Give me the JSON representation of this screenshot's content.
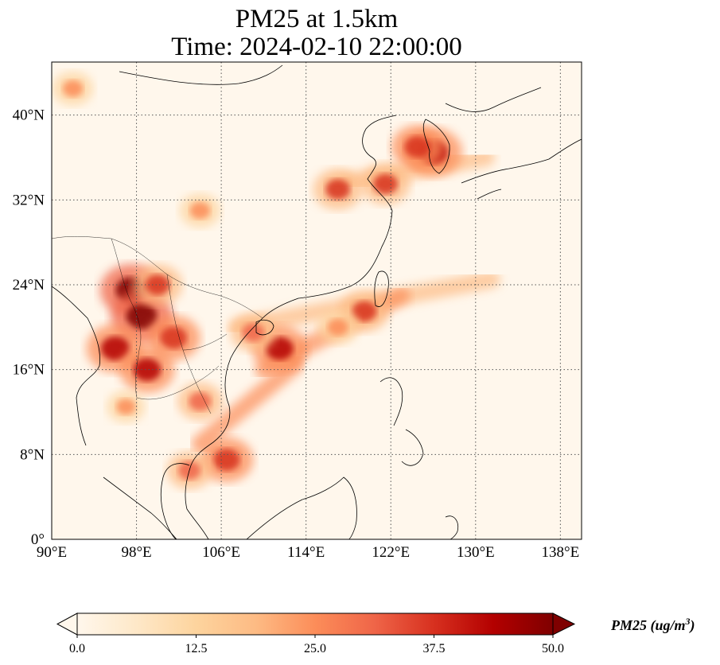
{
  "title": {
    "line1": "PM25 at 1.5km",
    "line2": "Time: 2024-02-10 22:00:00"
  },
  "map": {
    "lon_range": [
      90,
      140
    ],
    "lat_range": [
      0,
      45
    ],
    "gridlines": true,
    "x_ticks": [
      "90°E",
      "98°E",
      "106°E",
      "114°E",
      "122°E",
      "130°E",
      "138°E"
    ],
    "y_ticks": [
      "0°",
      "8°N",
      "16°N",
      "24°N",
      "32°N",
      "40°N"
    ],
    "x_tick_values": [
      90,
      98,
      106,
      114,
      122,
      130,
      138
    ],
    "y_tick_values": [
      0,
      8,
      16,
      24,
      32,
      40
    ],
    "colormap": "OrRd",
    "hotspots": [
      {
        "lon": 97.5,
        "lat": 23.5,
        "level": 50
      },
      {
        "lon": 98.5,
        "lat": 21.0,
        "level": 50
      },
      {
        "lon": 96.0,
        "lat": 18.0,
        "level": 45
      },
      {
        "lon": 101.5,
        "lat": 19.0,
        "level": 40
      },
      {
        "lon": 99.0,
        "lat": 16.0,
        "level": 42
      },
      {
        "lon": 104.0,
        "lat": 13.0,
        "level": 30
      },
      {
        "lon": 106.5,
        "lat": 7.5,
        "level": 40
      },
      {
        "lon": 103.0,
        "lat": 6.5,
        "level": 30
      },
      {
        "lon": 111.5,
        "lat": 18.0,
        "level": 42
      },
      {
        "lon": 109.0,
        "lat": 19.5,
        "level": 30
      },
      {
        "lon": 126.0,
        "lat": 36.5,
        "level": 45
      },
      {
        "lon": 124.5,
        "lat": 37.0,
        "level": 38
      },
      {
        "lon": 117.0,
        "lat": 33.0,
        "level": 35
      },
      {
        "lon": 121.5,
        "lat": 33.5,
        "level": 35
      },
      {
        "lon": 119.5,
        "lat": 21.5,
        "level": 35
      },
      {
        "lon": 117.0,
        "lat": 20.0,
        "level": 25
      },
      {
        "lon": 104.0,
        "lat": 31.0,
        "level": 25
      },
      {
        "lon": 92.0,
        "lat": 42.5,
        "level": 25
      },
      {
        "lon": 100.0,
        "lat": 24.0,
        "level": 35
      },
      {
        "lon": 97.0,
        "lat": 12.5,
        "level": 22
      }
    ],
    "plumes": [
      {
        "from": [
          107.5,
          20.0
        ],
        "to": [
          131.5,
          24.5
        ],
        "level": 20
      },
      {
        "from": [
          110.0,
          16.0
        ],
        "to": [
          123.0,
          23.0
        ],
        "level": 22
      },
      {
        "from": [
          104.0,
          9.0
        ],
        "to": [
          113.0,
          16.5
        ],
        "level": 22
      },
      {
        "from": [
          117.0,
          33.5
        ],
        "to": [
          131.0,
          36.0
        ],
        "level": 20
      }
    ]
  },
  "colorbar": {
    "min": 0,
    "max": 50,
    "ticks": [
      "0.0",
      "12.5",
      "25.0",
      "37.5",
      "50.0"
    ],
    "tick_values": [
      0,
      12.5,
      25,
      37.5,
      50
    ],
    "label": "PM25 (ug/m",
    "label_superscript": "3",
    "label_close": ")",
    "extend": "both",
    "colors": [
      "#fff7ec",
      "#fee8c8",
      "#fdd49e",
      "#fdbb84",
      "#fc8d59",
      "#ef6548",
      "#d7301f",
      "#b30000",
      "#7f0000"
    ]
  }
}
